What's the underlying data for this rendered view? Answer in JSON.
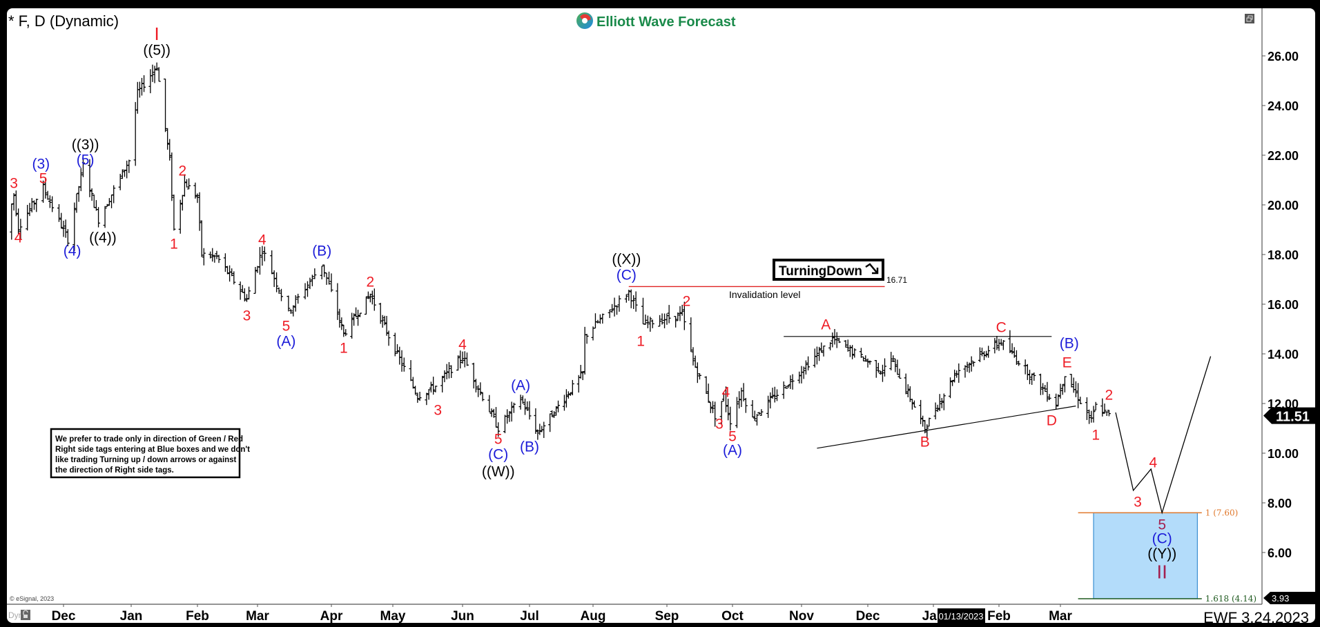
{
  "header": {
    "symbol_title": "* F, D (Dynamic)",
    "logo_text": "Elliott Wave Forecast",
    "restore_icon": "window-restore-icon"
  },
  "footer": {
    "copyright": "© eSignal, 2023",
    "dyn_label": "Dyn",
    "lock_icon": "lock-icon",
    "stamp": "EWF 3.24.2023",
    "cursor_date": "01/13/2023"
  },
  "notes": {
    "lines": [
      "We prefer to trade only in direction of Green / Red",
      "Right side tags entering at Blue boxes and we don't",
      "like trading Turning up / down arrows or against",
      "the direction of Right side tags."
    ]
  },
  "colors": {
    "red": "#ee1c25",
    "blue": "#1b1bd8",
    "black": "#000000",
    "darkred": "#a3204f",
    "box_fill": "#b3dcfa",
    "box_edge": "#3b8fd0",
    "fib_100": "#e0782c",
    "fib_1618": "#1f5a1f",
    "invalidation": "#e02020",
    "logo_green": "#1a8a4a"
  },
  "chart_data": {
    "type": "ohlc-bar",
    "symbol": "F",
    "interval": "D",
    "ylim": [
      3.93,
      27.5
    ],
    "yticks": [
      6,
      8,
      10,
      12,
      14,
      16,
      18,
      20,
      22,
      24,
      26
    ],
    "ytick_labels": [
      "6.00",
      "8.00",
      "10.00",
      "12.00",
      "14.00",
      "16.00",
      "18.00",
      "20.00",
      "22.00",
      "24.00",
      "26.00"
    ],
    "xticks": [
      {
        "label": "Dec",
        "date": "2021-12-01"
      },
      {
        "label": "Jan",
        "date": "2022-01-01"
      },
      {
        "label": "Feb",
        "date": "2022-02-01"
      },
      {
        "label": "Mar",
        "date": "2022-03-01"
      },
      {
        "label": "Apr",
        "date": "2022-04-01"
      },
      {
        "label": "May",
        "date": "2022-05-01"
      },
      {
        "label": "Jun",
        "date": "2022-06-01"
      },
      {
        "label": "Jul",
        "date": "2022-07-01"
      },
      {
        "label": "Aug",
        "date": "2022-08-01"
      },
      {
        "label": "Sep",
        "date": "2022-09-01"
      },
      {
        "label": "Oct",
        "date": "2022-10-01"
      },
      {
        "label": "Nov",
        "date": "2022-11-01"
      },
      {
        "label": "Dec",
        "date": "2022-12-01"
      },
      {
        "label": "Jan",
        "date": "2023-01-01"
      },
      {
        "label": "Feb",
        "date": "2023-02-01"
      },
      {
        "label": "Mar",
        "date": "2023-03-01"
      }
    ],
    "price_path": [
      [
        "2021-11-05",
        18.9
      ],
      [
        "2021-11-09",
        20.4
      ],
      [
        "2021-11-11",
        19.1
      ],
      [
        "2021-11-22",
        20.7
      ],
      [
        "2021-12-03",
        18.6
      ],
      [
        "2021-12-10",
        21.6
      ],
      [
        "2021-12-17",
        19.4
      ],
      [
        "2021-12-31",
        21.8
      ],
      [
        "2022-01-04",
        24.5
      ],
      [
        "2022-01-13",
        25.6
      ],
      [
        "2022-01-19",
        21.8
      ],
      [
        "2022-01-21",
        19.0
      ],
      [
        "2022-01-26",
        20.9
      ],
      [
        "2022-02-01",
        20.3
      ],
      [
        "2022-02-03",
        18.0
      ],
      [
        "2022-02-10",
        17.9
      ],
      [
        "2022-02-24",
        16.2
      ],
      [
        "2022-03-03",
        18.2
      ],
      [
        "2022-03-14",
        15.7
      ],
      [
        "2022-03-28",
        17.6
      ],
      [
        "2022-04-07",
        14.8
      ],
      [
        "2022-04-20",
        16.4
      ],
      [
        "2022-05-12",
        12.3
      ],
      [
        "2022-05-20",
        12.7
      ],
      [
        "2022-06-01",
        13.9
      ],
      [
        "2022-06-17",
        11.0
      ],
      [
        "2022-06-27",
        12.2
      ],
      [
        "2022-07-05",
        10.8
      ],
      [
        "2022-07-27",
        13.2
      ],
      [
        "2022-07-28",
        14.7
      ],
      [
        "2022-08-16",
        16.5
      ],
      [
        "2022-08-22",
        15.2
      ],
      [
        "2022-09-08",
        15.6
      ],
      [
        "2022-09-13",
        13.7
      ],
      [
        "2022-09-23",
        11.5
      ],
      [
        "2022-09-27",
        12.3
      ],
      [
        "2022-09-30",
        11.3
      ],
      [
        "2022-10-05",
        12.5
      ],
      [
        "2022-10-10",
        11.4
      ],
      [
        "2022-11-15",
        14.6
      ],
      [
        "2022-12-08",
        13.3
      ],
      [
        "2022-12-12",
        13.8
      ],
      [
        "2022-12-28",
        11.0
      ],
      [
        "2023-01-12",
        13.3
      ],
      [
        "2023-02-02",
        14.5
      ],
      [
        "2023-02-09",
        13.8
      ],
      [
        "2023-02-27",
        12.0
      ],
      [
        "2023-03-03",
        13.2
      ],
      [
        "2023-03-15",
        11.3
      ],
      [
        "2023-03-17",
        11.9
      ],
      [
        "2023-03-23",
        11.51
      ]
    ],
    "last_price": "11.51",
    "scale_low_label": "3.93",
    "projection_path": [
      [
        "2023-03-26",
        11.64
      ],
      [
        "2023-04-03",
        8.5
      ],
      [
        "2023-04-11",
        9.36
      ],
      [
        "2023-04-16",
        7.6
      ],
      [
        "2023-05-08",
        13.9
      ]
    ],
    "blue_box": {
      "from": "2023-03-16",
      "to": "2023-05-02",
      "top": 7.6,
      "bottom": 4.14
    },
    "fib_levels": [
      {
        "label": "1 (7.60)",
        "price": 7.6,
        "color": "fib_100",
        "from": "2023-03-09",
        "to": "2023-05-04"
      },
      {
        "label": "1.618 (4.14)",
        "price": 4.14,
        "color": "fib_1618",
        "from": "2023-03-09",
        "to": "2023-05-04"
      }
    ],
    "invalidation": {
      "price": 16.71,
      "value_label": "16.71",
      "label": "Invalidation level",
      "from": "2022-08-16",
      "to": "2022-12-09"
    },
    "turning_signal": {
      "text": "TurningDown",
      "icon": "arrow-down-right-icon"
    },
    "trendlines": [
      {
        "from": [
          "2022-10-24",
          14.7
        ],
        "to": [
          "2023-02-25",
          14.7
        ]
      },
      {
        "from": [
          "2022-11-08",
          10.2
        ],
        "to": [
          "2023-03-08",
          11.9
        ]
      }
    ],
    "annotations": [
      {
        "text": "I",
        "color": "red",
        "date": "2022-01-13",
        "price": 26.89
      },
      {
        "text": "((5))",
        "color": "black",
        "date": "2022-01-13",
        "price": 26.22
      },
      {
        "text": "3",
        "color": "red",
        "date": "2021-11-09",
        "price": 20.86
      },
      {
        "text": "4",
        "color": "red",
        "date": "2021-11-11",
        "price": 18.67
      },
      {
        "text": "(3)",
        "color": "blue",
        "date": "2021-11-21",
        "price": 21.64
      },
      {
        "text": "5",
        "color": "red",
        "date": "2021-11-22",
        "price": 21.06
      },
      {
        "text": "(4)",
        "color": "blue",
        "date": "2021-12-05",
        "price": 18.14
      },
      {
        "text": "((3))",
        "color": "black",
        "date": "2021-12-11",
        "price": 22.42
      },
      {
        "text": "(5)",
        "color": "blue",
        "date": "2021-12-11",
        "price": 21.81
      },
      {
        "text": "((4))",
        "color": "black",
        "date": "2021-12-19",
        "price": 18.67
      },
      {
        "text": "2",
        "color": "red",
        "date": "2022-01-25",
        "price": 21.36
      },
      {
        "text": "1",
        "color": "red",
        "date": "2022-01-21",
        "price": 18.42
      },
      {
        "text": "4",
        "color": "red",
        "date": "2022-03-03",
        "price": 18.58
      },
      {
        "text": "3",
        "color": "red",
        "date": "2022-02-24",
        "price": 15.53
      },
      {
        "text": "5",
        "color": "red",
        "date": "2022-03-13",
        "price": 15.11
      },
      {
        "text": "(A)",
        "color": "blue",
        "date": "2022-03-13",
        "price": 14.5
      },
      {
        "text": "(B)",
        "color": "blue",
        "date": "2022-03-28",
        "price": 18.14
      },
      {
        "text": "1",
        "color": "red",
        "date": "2022-04-07",
        "price": 14.22
      },
      {
        "text": "2",
        "color": "red",
        "date": "2022-04-20",
        "price": 16.89
      },
      {
        "text": "3",
        "color": "red",
        "date": "2022-05-21",
        "price": 11.72
      },
      {
        "text": "4",
        "color": "red",
        "date": "2022-06-01",
        "price": 14.36
      },
      {
        "text": "5",
        "color": "red",
        "date": "2022-06-17",
        "price": 10.56
      },
      {
        "text": "(C)",
        "color": "blue",
        "date": "2022-06-17",
        "price": 9.94
      },
      {
        "text": "((W))",
        "color": "black",
        "date": "2022-06-17",
        "price": 9.25
      },
      {
        "text": "(A)",
        "color": "blue",
        "date": "2022-06-27",
        "price": 12.72
      },
      {
        "text": "(B)",
        "color": "blue",
        "date": "2022-07-01",
        "price": 10.25
      },
      {
        "text": "((X))",
        "color": "black",
        "date": "2022-08-15",
        "price": 17.81
      },
      {
        "text": "(C)",
        "color": "blue",
        "date": "2022-08-15",
        "price": 17.17
      },
      {
        "text": "1",
        "color": "red",
        "date": "2022-08-21",
        "price": 14.5
      },
      {
        "text": "2",
        "color": "red",
        "date": "2022-09-10",
        "price": 16.11
      },
      {
        "text": "4",
        "color": "red",
        "date": "2022-09-28",
        "price": 12.44
      },
      {
        "text": "3",
        "color": "red",
        "date": "2022-09-25",
        "price": 11.17
      },
      {
        "text": "5",
        "color": "red",
        "date": "2022-10-01",
        "price": 10.67
      },
      {
        "text": "(A)",
        "color": "blue",
        "date": "2022-10-01",
        "price": 10.11
      },
      {
        "text": "A",
        "color": "red",
        "date": "2022-11-12",
        "price": 15.17
      },
      {
        "text": "B",
        "color": "red",
        "date": "2022-12-28",
        "price": 10.44
      },
      {
        "text": "C",
        "color": "red",
        "date": "2023-02-02",
        "price": 15.06
      },
      {
        "text": "(B)",
        "color": "blue",
        "date": "2023-03-05",
        "price": 14.42
      },
      {
        "text": "E",
        "color": "red",
        "date": "2023-03-04",
        "price": 13.64
      },
      {
        "text": "D",
        "color": "red",
        "date": "2023-02-25",
        "price": 11.31
      },
      {
        "text": "2",
        "color": "red",
        "date": "2023-03-23",
        "price": 12.33
      },
      {
        "text": "1",
        "color": "red",
        "date": "2023-03-17",
        "price": 10.72
      },
      {
        "text": "3",
        "color": "red",
        "date": "2023-04-05",
        "price": 8.03
      },
      {
        "text": "4",
        "color": "red",
        "date": "2023-04-12",
        "price": 9.61
      },
      {
        "text": "5",
        "color": "darkred",
        "date": "2023-04-16",
        "price": 7.11
      },
      {
        "text": "(C)",
        "color": "blue",
        "date": "2023-04-16",
        "price": 6.56
      },
      {
        "text": "((Y))",
        "color": "black",
        "date": "2023-04-16",
        "price": 5.94
      },
      {
        "text": "II",
        "color": "darkred",
        "date": "2023-04-16",
        "price": 5.22
      }
    ]
  }
}
